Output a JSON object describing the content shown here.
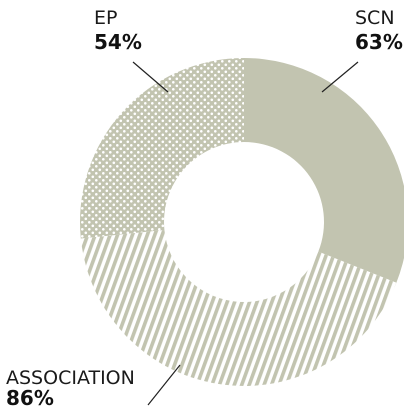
{
  "chart_data": {
    "type": "pie",
    "style": "donut",
    "slices": [
      {
        "label": "SCN",
        "value_label": "63%",
        "value": 63,
        "color": "#c2c4b0",
        "pattern": "solid"
      },
      {
        "label": "ASSOCIATION",
        "value_label": "86%",
        "value": 86,
        "color": "#c2c4b0",
        "pattern": "diagonal-stripes"
      },
      {
        "label": "EP",
        "value_label": "54%",
        "value": 54,
        "color": "#c2c4b0",
        "pattern": "dots"
      }
    ]
  }
}
